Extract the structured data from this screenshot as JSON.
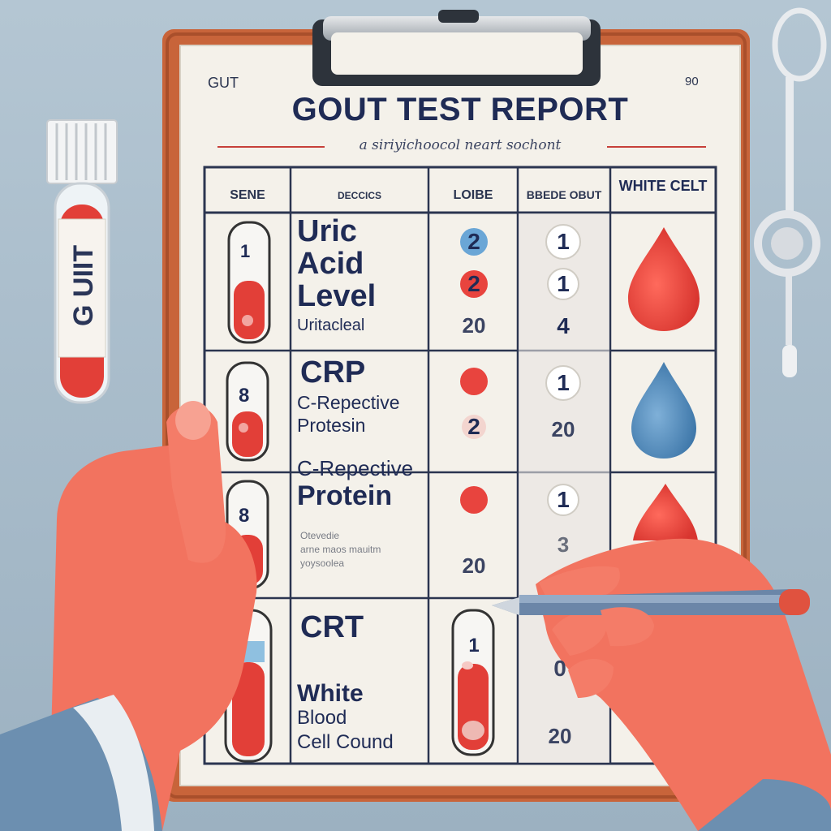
{
  "report": {
    "corner_left": "GUT",
    "corner_right": "90",
    "title": "GOUT TEST REPORT",
    "subtitle": "a siriyichoocol neart sochont"
  },
  "table": {
    "headers": [
      "SENE",
      "DECCICS",
      "LOIBE",
      "BBEDE OBUT",
      "WHITE CELT"
    ],
    "rows": [
      {
        "tube_value": "1",
        "name_lines": [
          "Uric",
          "Acid",
          "Level"
        ],
        "sub": "Uritacleal",
        "values": [
          "2",
          "2",
          "20"
        ],
        "counts": [
          "1",
          "1",
          "4"
        ]
      },
      {
        "tube_value": "8",
        "name_lines": [
          "CRP"
        ],
        "sub_lines": [
          "C-Repective",
          "Protesin"
        ],
        "values": [
          "2"
        ],
        "counts": [
          "1",
          "20"
        ]
      },
      {
        "tube_value": "8",
        "name_lines": [
          "C-Repective",
          "Protein"
        ],
        "notes": [
          "Otevedie",
          "arne maos mauitm",
          "yoysoolea"
        ],
        "values": [
          "20"
        ],
        "counts": [
          "1",
          "3"
        ]
      },
      {
        "name_lines": [
          "CRT"
        ],
        "sub_lines": [
          "White",
          "Blood",
          "Cell Cound"
        ],
        "tube_value": "1",
        "counts": [
          "0",
          "20"
        ]
      }
    ]
  },
  "sample_tube": {
    "label": "G UIIT"
  },
  "colors": {
    "background": "#a9bccb",
    "clipboard": "#c8643a",
    "paper": "#f4f1ea",
    "ink": "#1f2b55",
    "blood": "#e8443e",
    "water_drop": "#4f86b8",
    "skin": "#f2735f"
  },
  "icons": [
    "test-tube-icon",
    "blood-drop-icon",
    "water-drop-icon",
    "stethoscope-icon",
    "pen-icon"
  ]
}
